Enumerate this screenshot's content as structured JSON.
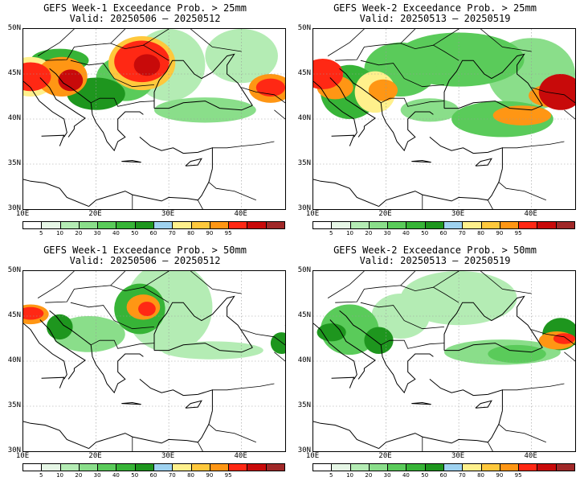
{
  "colorbar": {
    "colors": [
      "#ffffff",
      "#e6f7e6",
      "#b4ecb4",
      "#8ade8a",
      "#5acb5a",
      "#37b437",
      "#1e961e",
      "#9ed2f0",
      "#fff08c",
      "#ffc83c",
      "#ff9614",
      "#ff2814",
      "#c80a0a",
      "#a02828"
    ],
    "labels": [
      "5",
      "10",
      "20",
      "30",
      "40",
      "50",
      "60",
      "70",
      "80",
      "90",
      "95"
    ]
  },
  "axes": {
    "lat_labels": [
      "50N",
      "45N",
      "40N",
      "35N",
      "30N"
    ],
    "lon_labels": [
      "10E",
      "20E",
      "30E",
      "40E"
    ]
  },
  "panels": [
    {
      "id": "w1-25",
      "title_line1": "GEFS Week-1 Exceedance Prob. > 25mm",
      "title_line2": "Valid: 20250506 – 20250512"
    },
    {
      "id": "w2-25",
      "title_line1": "GEFS Week-2 Exceedance Prob. > 25mm",
      "title_line2": "Valid: 20250513 – 20250519"
    },
    {
      "id": "w1-50",
      "title_line1": "GEFS Week-1 Exceedance Prob. > 50mm",
      "title_line2": "Valid: 20250506 – 20250512"
    },
    {
      "id": "w2-50",
      "title_line1": "GEFS Week-2 Exceedance Prob. > 50mm",
      "title_line2": "Valid: 20250513 – 20250519"
    }
  ]
}
